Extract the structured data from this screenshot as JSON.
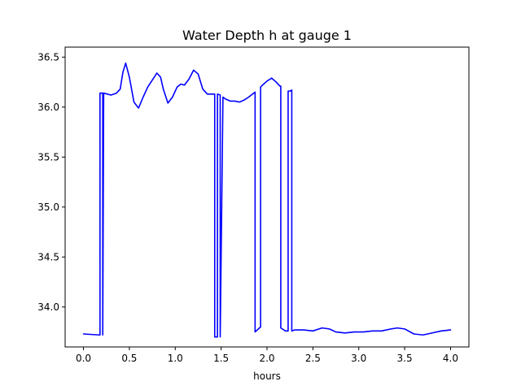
{
  "chart_data": {
    "type": "line",
    "title": "Water Depth h at gauge 1",
    "xlabel": "hours",
    "ylabel": "",
    "xlim": [
      -0.2,
      4.2
    ],
    "ylim": [
      33.6,
      36.6
    ],
    "xticks": [
      0.0,
      0.5,
      1.0,
      1.5,
      2.0,
      2.5,
      3.0,
      3.5,
      4.0
    ],
    "xtick_labels": [
      "0.0",
      "0.5",
      "1.0",
      "1.5",
      "2.0",
      "2.5",
      "3.0",
      "3.5",
      "4.0"
    ],
    "yticks": [
      34.0,
      34.5,
      35.0,
      35.5,
      36.0,
      36.5
    ],
    "ytick_labels": [
      "34.0",
      "34.5",
      "35.0",
      "35.5",
      "36.0",
      "36.5"
    ],
    "grid": false,
    "series": [
      {
        "color": "#0000ff",
        "x": [
          0.0,
          0.17,
          0.18,
          0.18,
          0.21,
          0.21,
          0.22,
          0.3,
          0.36,
          0.4,
          0.43,
          0.46,
          0.5,
          0.55,
          0.6,
          0.65,
          0.7,
          0.75,
          0.8,
          0.84,
          0.87,
          0.92,
          0.97,
          1.02,
          1.06,
          1.1,
          1.15,
          1.2,
          1.25,
          1.3,
          1.35,
          1.4,
          1.43,
          1.43,
          1.46,
          1.46,
          1.49,
          1.49,
          1.52,
          1.55,
          1.6,
          1.65,
          1.7,
          1.75,
          1.8,
          1.87,
          1.87,
          1.93,
          1.93,
          1.95,
          2.0,
          2.05,
          2.1,
          2.14,
          2.15,
          2.15,
          2.2,
          2.23,
          2.23,
          2.25,
          2.27,
          2.27,
          2.3,
          2.4,
          2.5,
          2.6,
          2.68,
          2.75,
          2.85,
          2.95,
          3.05,
          3.15,
          3.25,
          3.35,
          3.42,
          3.5,
          3.6,
          3.7,
          3.8,
          3.9,
          4.0
        ],
        "y": [
          33.73,
          33.72,
          33.72,
          36.14,
          36.14,
          33.72,
          36.14,
          36.12,
          36.14,
          36.18,
          36.35,
          36.44,
          36.3,
          36.05,
          35.99,
          36.1,
          36.2,
          36.27,
          36.34,
          36.3,
          36.18,
          36.04,
          36.1,
          36.2,
          36.23,
          36.22,
          36.28,
          36.37,
          36.33,
          36.18,
          36.13,
          36.13,
          36.13,
          33.7,
          33.7,
          36.13,
          36.12,
          33.7,
          36.1,
          36.08,
          36.06,
          36.06,
          36.05,
          36.07,
          36.1,
          36.15,
          33.75,
          33.8,
          36.2,
          36.22,
          36.26,
          36.29,
          36.25,
          36.21,
          36.21,
          33.79,
          33.76,
          33.76,
          36.16,
          36.16,
          36.17,
          33.76,
          33.77,
          33.77,
          33.76,
          33.79,
          33.78,
          33.75,
          33.74,
          33.75,
          33.75,
          33.76,
          33.76,
          33.78,
          33.79,
          33.78,
          33.73,
          33.72,
          33.74,
          33.76,
          33.77
        ]
      }
    ]
  }
}
